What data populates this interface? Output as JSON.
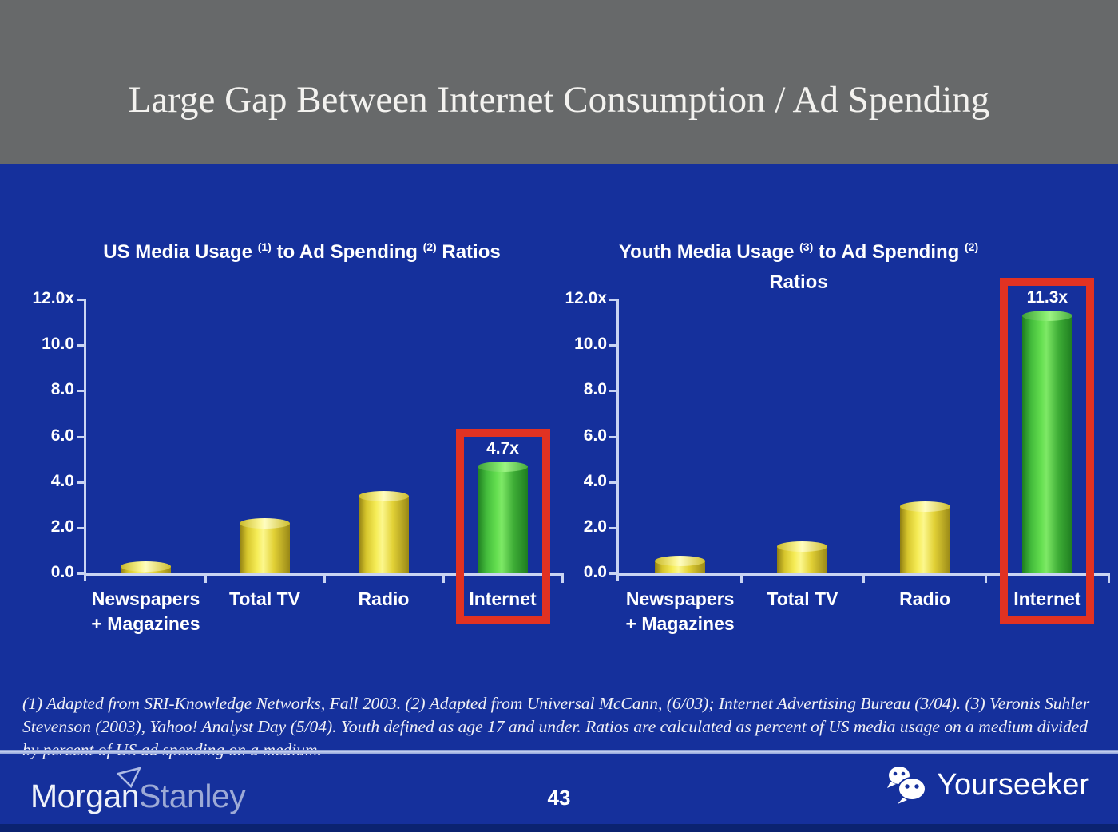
{
  "header": {
    "title": "Large Gap Between Internet Consumption / Ad Spending"
  },
  "footnote": "(1) Adapted from SRI-Knowledge Networks, Fall 2003.  (2) Adapted from Universal McCann, (6/03); Internet Advertising Bureau (3/04). (3) Veronis Suhler Stevenson (2003), Yahoo! Analyst Day (5/04).  Youth defined as age 17 and under.  Ratios are calculated as percent of US media usage on a medium divided by percent of US ad spending on a medium.",
  "footer": {
    "brand": {
      "part1": "Morgan",
      "part2": "Stanley",
      "flag_icon": "morgan-stanley-flag-icon"
    },
    "page_number": "43",
    "watermark": {
      "icon": "wechat-icon",
      "label": "Yourseeker"
    }
  },
  "colors": {
    "background_blue": "#15309C",
    "header_gray": "#67696A",
    "axis_light_blue": "#C9D4F2",
    "bar_yellow": "#F6ED58",
    "bar_green": "#65DF50",
    "highlight_red": "#E13222",
    "bottom_strip_navy": "#0B2371",
    "brand_secondary": "#9DAAD6"
  },
  "chart_data": [
    {
      "type": "bar",
      "title": "US Media Usage (1) to Ad Spending (2) Ratios",
      "title_lines": [
        [
          {
            "text": "US Media Usage "
          },
          {
            "sup": "(1)"
          },
          {
            "text": " to Ad Spending "
          },
          {
            "sup": "(2)"
          },
          {
            "text": " Ratios"
          }
        ]
      ],
      "categories": [
        "Newspapers + Magazines",
        "Total TV",
        "Radio",
        "Internet"
      ],
      "category_lines": [
        [
          "Newspapers",
          "+ Magazines"
        ],
        [
          "Total TV"
        ],
        [
          "Radio"
        ],
        [
          "Internet"
        ]
      ],
      "values": [
        0.3,
        2.2,
        3.4,
        4.7
      ],
      "bar_colors": [
        "yellow",
        "yellow",
        "yellow",
        "green"
      ],
      "ylim": [
        0,
        12
      ],
      "ytick_labels": [
        "12.0x",
        "10.0",
        "8.0",
        "6.0",
        "4.0",
        "2.0",
        "0.0"
      ],
      "highlight": {
        "category_index": 3,
        "value_label": "4.7x"
      },
      "xlabel": "",
      "ylabel": "",
      "grid": false,
      "legend": false
    },
    {
      "type": "bar",
      "title": "Youth Media Usage (3) to Ad Spending (2) Ratios",
      "title_lines": [
        [
          {
            "text": "Youth Media Usage "
          },
          {
            "sup": "(3)"
          },
          {
            "text": " to Ad Spending "
          },
          {
            "sup": "(2)"
          }
        ],
        [
          {
            "text": "Ratios"
          }
        ]
      ],
      "categories": [
        "Newspapers + Magazines",
        "Total TV",
        "Radio",
        "Internet"
      ],
      "category_lines": [
        [
          "Newspapers",
          "+ Magazines"
        ],
        [
          "Total TV"
        ],
        [
          "Radio"
        ],
        [
          "Internet"
        ]
      ],
      "values": [
        0.55,
        1.2,
        2.95,
        11.3
      ],
      "bar_colors": [
        "yellow",
        "yellow",
        "yellow",
        "green"
      ],
      "ylim": [
        0,
        12
      ],
      "ytick_labels": [
        "12.0x",
        "10.0",
        "8.0",
        "6.0",
        "4.0",
        "2.0",
        "0.0"
      ],
      "highlight": {
        "category_index": 3,
        "value_label": "11.3x"
      },
      "xlabel": "",
      "ylabel": "",
      "grid": false,
      "legend": false
    }
  ]
}
